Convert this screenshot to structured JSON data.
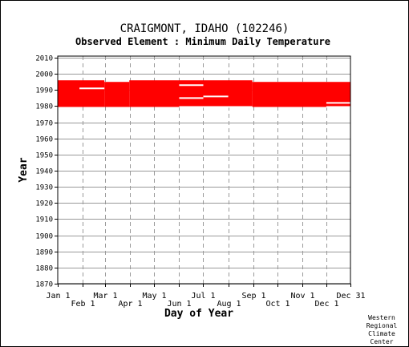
{
  "chart_data": {
    "type": "bar",
    "title": "CRAIGMONT, IDAHO    (102246)",
    "subtitle": "Observed Element : Minimum Daily Temperature",
    "xlabel": "Day of Year",
    "ylabel": "Year",
    "credit": [
      "Western",
      "Regional",
      "Climate",
      "Center"
    ],
    "xlim": [
      1,
      365
    ],
    "ylim": [
      1870,
      2011
    ],
    "grid": true,
    "x_ticks_upper": [
      {
        "label": "Jan 1",
        "day": 1
      },
      {
        "label": "Mar 1",
        "day": 60
      },
      {
        "label": "May 1",
        "day": 121
      },
      {
        "label": "Jul 1",
        "day": 182
      },
      {
        "label": "Sep 1",
        "day": 244
      },
      {
        "label": "Nov 1",
        "day": 305
      },
      {
        "label": "Dec 31",
        "day": 365
      }
    ],
    "x_ticks_lower": [
      {
        "label": "Feb 1",
        "day": 32
      },
      {
        "label": "Apr 1",
        "day": 91
      },
      {
        "label": "Jun 1",
        "day": 152
      },
      {
        "label": "Aug 1",
        "day": 213
      },
      {
        "label": "Oct 1",
        "day": 274
      },
      {
        "label": "Dec 1",
        "day": 335
      }
    ],
    "y_ticks": [
      1870,
      1880,
      1890,
      1900,
      1910,
      1920,
      1930,
      1940,
      1950,
      1960,
      1970,
      1980,
      1990,
      2000,
      2010
    ],
    "colors": {
      "data": "#ff0000",
      "grid_solid": "#999999",
      "grid_dashed": "#999999",
      "background": "#ffffff"
    },
    "coverage_segments": [
      {
        "start_day": 1,
        "end_day": 59,
        "start_year": 1979.5,
        "end_year": 1996.0
      },
      {
        "start_day": 59,
        "end_day": 90,
        "start_year": 1979.5,
        "end_year": 1995.0
      },
      {
        "start_day": 90,
        "end_day": 243,
        "start_year": 1979.5,
        "end_year": 1996.0
      },
      {
        "start_day": 243,
        "end_day": 365,
        "start_year": 1979.5,
        "end_year": 1995.0
      }
    ],
    "missing_gaps": [
      {
        "start_day": 28,
        "end_day": 59,
        "year": 1991
      },
      {
        "start_day": 152,
        "end_day": 182,
        "year": 1993
      },
      {
        "start_day": 152,
        "end_day": 182,
        "year": 1985
      },
      {
        "start_day": 182,
        "end_day": 213,
        "year": 1986
      },
      {
        "start_day": 335,
        "end_day": 365,
        "year": 1982
      },
      {
        "start_day": 152,
        "end_day": 243,
        "year": 1979.5
      },
      {
        "start_day": 335,
        "end_day": 365,
        "year": 1979.5
      }
    ]
  }
}
